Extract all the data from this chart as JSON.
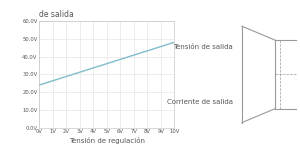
{
  "left_title": "de salida",
  "xlabel": "Tensión de regulación",
  "x_ticks": [
    "0V",
    "1V",
    "2V",
    "3V",
    "4V",
    "5V",
    "6V",
    "7V",
    "8V",
    "9V",
    "10V"
  ],
  "y_ticks": [
    "0.0V",
    "10.0V",
    "20.0V",
    "30.0V",
    "40.0V",
    "50.0V",
    "60.0V"
  ],
  "x_data": [
    0,
    10
  ],
  "y_data": [
    24,
    48
  ],
  "line_color": "#7fbccc",
  "grid_color": "#e0e0e0",
  "axis_color": "#bbbbbb",
  "text_color": "#555555",
  "right_label1": "Tensión de salida",
  "right_label2": "Corriente de salida",
  "schematic_color": "#999999",
  "bg_color": "#ffffff"
}
